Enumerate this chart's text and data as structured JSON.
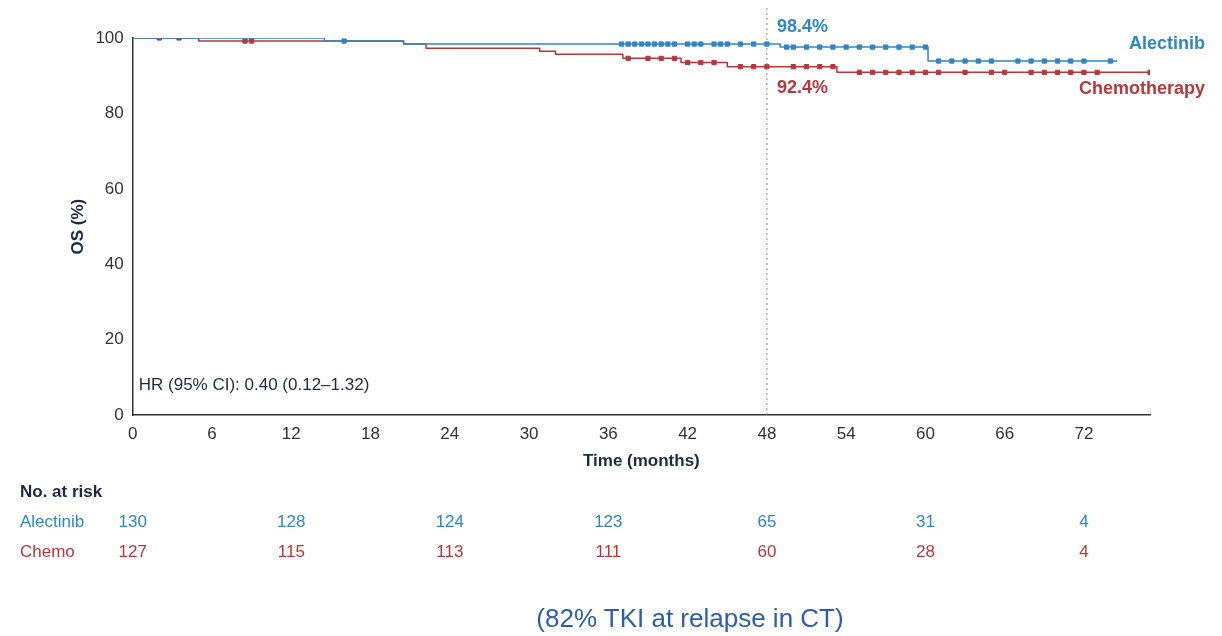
{
  "chart_data": {
    "type": "step",
    "xlabel": "Time (months)",
    "ylabel": "OS (%)",
    "xlim": [
      0,
      77
    ],
    "xticks": [
      0,
      6,
      12,
      18,
      24,
      30,
      36,
      42,
      48,
      54,
      60,
      66,
      72
    ],
    "ylim": [
      0,
      100
    ],
    "yticks": [
      0,
      20,
      40,
      60,
      80,
      100
    ],
    "grid": false,
    "legend": false,
    "series": [
      {
        "name": "Alectinib",
        "color": "#2f86c8",
        "x": [
          0,
          14.5,
          20.5,
          49,
          60.2,
          74.5
        ],
        "values": [
          100,
          99.2,
          98.4,
          97.6,
          93.9,
          93.9
        ]
      },
      {
        "name": "Chemotherapy",
        "color": "#b5383a",
        "x": [
          0,
          5,
          20.5,
          22.2,
          30.8,
          32,
          37.1,
          41.5,
          45,
          53.3,
          77
        ],
        "values": [
          100,
          99.2,
          98.4,
          97.3,
          96.5,
          95.7,
          94.6,
          93.5,
          92.4,
          90.9,
          90.9
        ]
      },
      {
        "type": "scatter",
        "marker": "square",
        "color": "#2f86c8",
        "x": [
          16,
          37,
          37.5,
          38,
          38.5,
          39,
          39.5,
          40,
          40.5,
          41,
          42,
          42.5,
          43,
          44,
          44.5,
          45,
          46,
          47,
          48,
          49.5,
          50,
          51,
          52,
          53,
          54,
          55,
          56,
          57,
          58,
          59,
          60,
          61,
          62,
          63,
          64,
          65,
          67,
          68,
          69,
          70,
          71,
          72,
          74
        ],
        "values": [
          99.2,
          98.4,
          98.4,
          98.4,
          98.4,
          98.4,
          98.4,
          98.4,
          98.4,
          98.4,
          98.4,
          98.4,
          98.4,
          98.4,
          98.4,
          98.4,
          98.4,
          98.4,
          98.4,
          97.6,
          97.6,
          97.6,
          97.6,
          97.6,
          97.6,
          97.6,
          97.6,
          97.6,
          97.6,
          97.6,
          97.6,
          93.9,
          93.9,
          93.9,
          93.9,
          93.9,
          93.9,
          93.9,
          93.9,
          93.9,
          93.9,
          93.9,
          93.9
        ]
      },
      {
        "type": "scatter",
        "marker": "square",
        "color": "#b5383a",
        "x": [
          2,
          3.5,
          8.5,
          9,
          37.5,
          39,
          40,
          41,
          42,
          43,
          44,
          46,
          47,
          48,
          50,
          51,
          52,
          53,
          55,
          56,
          57,
          58,
          59,
          60,
          61,
          63,
          65,
          66,
          68,
          69,
          70,
          71,
          72,
          73,
          77
        ],
        "values": [
          100,
          100,
          99.2,
          99.2,
          94.6,
          94.6,
          94.6,
          94.6,
          93.5,
          93.5,
          93.5,
          92.4,
          92.4,
          92.4,
          92.4,
          92.4,
          92.4,
          92.4,
          90.9,
          90.9,
          90.9,
          90.9,
          90.9,
          90.9,
          90.9,
          90.9,
          90.9,
          90.9,
          90.9,
          90.9,
          90.9,
          90.9,
          90.9,
          90.9,
          90.9
        ]
      }
    ],
    "ref_lines": [
      {
        "axis": "x",
        "value": 48,
        "color": "#888888",
        "line_style": "dotted"
      }
    ],
    "annotations": [
      {
        "text": "98.4%",
        "x": 48,
        "y": 98.4
      },
      {
        "text": "92.4%",
        "x": 48,
        "y": 92.4
      },
      "HR (95% CI): 0.40 (0.12–1.32)",
      "(82% TKI at relapse in CT)",
      "No. at risk",
      "Alectinib",
      "130",
      "128",
      "124",
      "123",
      "65",
      "31",
      "4",
      "Chemo",
      "127",
      "115",
      "113",
      "111",
      "60",
      "28",
      "4"
    ]
  }
}
